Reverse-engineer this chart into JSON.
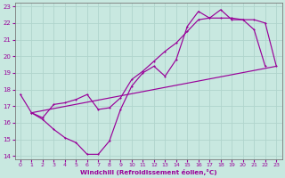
{
  "xlabel": "Windchill (Refroidissement éolien,°C)",
  "bg_color": "#c8e8e0",
  "line_color": "#990099",
  "grid_color": "#b0d4cc",
  "xlim": [
    -0.5,
    23.5
  ],
  "ylim": [
    13.8,
    23.2
  ],
  "xticks": [
    0,
    1,
    2,
    3,
    4,
    5,
    6,
    7,
    8,
    9,
    10,
    11,
    12,
    13,
    14,
    15,
    16,
    17,
    18,
    19,
    20,
    21,
    22,
    23
  ],
  "yticks": [
    14,
    15,
    16,
    17,
    18,
    19,
    20,
    21,
    22,
    23
  ],
  "line1_x": [
    0,
    1,
    2,
    3,
    4,
    5,
    6,
    7,
    8,
    9,
    10,
    11,
    12,
    13,
    14,
    15,
    16,
    17,
    18,
    19,
    20,
    21,
    22
  ],
  "line1_y": [
    17.7,
    16.6,
    16.2,
    15.6,
    15.1,
    14.8,
    14.1,
    14.1,
    14.9,
    16.8,
    18.2,
    19.0,
    19.4,
    18.8,
    19.8,
    21.8,
    22.7,
    22.3,
    22.8,
    22.2,
    22.2,
    21.6,
    19.4
  ],
  "line2_x": [
    1,
    2,
    3,
    4,
    5,
    6,
    7,
    8,
    9,
    10,
    11,
    12,
    13,
    14,
    15,
    16,
    17,
    18,
    19,
    20,
    21,
    22,
    23
  ],
  "line2_y": [
    16.6,
    16.3,
    17.1,
    17.2,
    17.4,
    17.7,
    16.8,
    16.9,
    17.5,
    18.6,
    19.1,
    19.7,
    20.3,
    20.8,
    21.5,
    22.2,
    22.3,
    22.3,
    22.3,
    22.2,
    22.2,
    22.0,
    19.4
  ],
  "line3_x": [
    1,
    22,
    23
  ],
  "line3_y": [
    16.6,
    19.4,
    19.4
  ]
}
